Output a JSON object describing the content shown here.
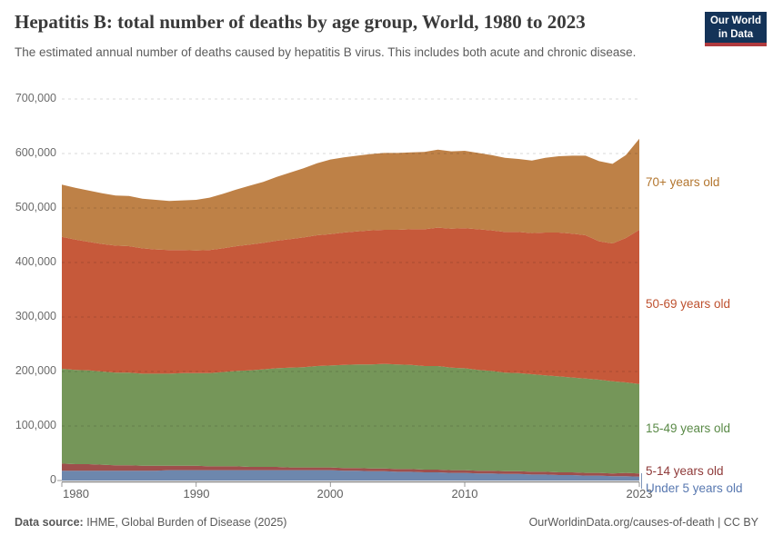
{
  "header": {
    "title": "Hepatitis B: total number of deaths by age group, World, 1980 to 2023",
    "subtitle": "The estimated annual number of deaths caused by hepatitis B virus. This includes both acute and chronic disease.",
    "logo_line1": "Our World",
    "logo_line2": "in Data",
    "logo_bg": "#143358",
    "logo_bar": "#B03A3E"
  },
  "chart_data": {
    "type": "area",
    "stacked": true,
    "title": "Hepatitis B: total number of deaths by age group, World, 1980 to 2023",
    "xlabel": "",
    "ylabel": "",
    "xlim": [
      1980,
      2023
    ],
    "ylim": [
      0,
      700000
    ],
    "grid": true,
    "legend_position": "right",
    "x": [
      1980,
      1981,
      1982,
      1983,
      1984,
      1985,
      1986,
      1987,
      1988,
      1989,
      1990,
      1991,
      1992,
      1993,
      1994,
      1995,
      1996,
      1997,
      1998,
      1999,
      2000,
      2001,
      2002,
      2003,
      2004,
      2005,
      2006,
      2007,
      2008,
      2009,
      2010,
      2011,
      2012,
      2013,
      2014,
      2015,
      2016,
      2017,
      2018,
      2019,
      2020,
      2021,
      2022,
      2023
    ],
    "series": [
      {
        "name": "Under 5 years old",
        "color": "#6D87AD",
        "label_color": "#5878B0",
        "values": [
          18000,
          18000,
          18000,
          18000,
          18000,
          18000,
          18000,
          18000,
          19000,
          19000,
          19000,
          19000,
          19000,
          19000,
          19000,
          19000,
          19000,
          19000,
          19000,
          19000,
          19000,
          18000,
          18000,
          17000,
          17000,
          16000,
          16000,
          15000,
          15000,
          14000,
          14000,
          13000,
          13000,
          12000,
          12000,
          11000,
          11000,
          10000,
          10000,
          9000,
          9000,
          8000,
          8000,
          7000
        ]
      },
      {
        "name": "5-14 years old",
        "color": "#9E4F4C",
        "label_color": "#8F3A39",
        "values": [
          13000,
          12000,
          12000,
          11000,
          10000,
          10000,
          9000,
          9000,
          8000,
          8000,
          8000,
          7000,
          7000,
          7000,
          6000,
          6000,
          6000,
          5000,
          5000,
          5000,
          5000,
          5000,
          5000,
          5000,
          5000,
          5000,
          5000,
          5000,
          5000,
          5000,
          5000,
          5000,
          5000,
          5000,
          5000,
          5000,
          5000,
          5000,
          5000,
          5000,
          5000,
          5000,
          6000,
          6000
        ]
      },
      {
        "name": "15-49 years old",
        "color": "#759659",
        "label_color": "#5A8A47",
        "values": [
          174000,
          173000,
          172000,
          171000,
          170000,
          170000,
          169000,
          169000,
          169000,
          170000,
          170000,
          171000,
          173000,
          175000,
          177000,
          179000,
          181000,
          183000,
          184000,
          186000,
          187000,
          189000,
          190000,
          191000,
          192000,
          192000,
          191000,
          190000,
          190000,
          188000,
          187000,
          185000,
          183000,
          181000,
          180000,
          179000,
          177000,
          176000,
          174000,
          173000,
          171000,
          169000,
          166000,
          164000
        ]
      },
      {
        "name": "50-69 years old",
        "color": "#C6593A",
        "label_color": "#BE512F",
        "values": [
          242000,
          239000,
          236000,
          234000,
          233000,
          232000,
          230000,
          228000,
          227000,
          226000,
          225000,
          226000,
          227000,
          229000,
          231000,
          232000,
          234000,
          236000,
          238000,
          240000,
          241000,
          243000,
          244000,
          246000,
          246000,
          247000,
          249000,
          251000,
          254000,
          255000,
          257000,
          258000,
          258000,
          258000,
          259000,
          259000,
          262000,
          264000,
          264000,
          263000,
          254000,
          253000,
          265000,
          283000
        ]
      },
      {
        "name": "70+ years old",
        "color": "#BE8147",
        "label_color": "#B3762F",
        "values": [
          96000,
          95000,
          94000,
          93000,
          92000,
          92000,
          91000,
          91000,
          90000,
          91000,
          93000,
          96000,
          100000,
          104000,
          108000,
          112000,
          117000,
          122000,
          127000,
          132000,
          137000,
          138000,
          139000,
          140000,
          141000,
          141000,
          141000,
          142000,
          143000,
          142000,
          142000,
          140000,
          138000,
          136000,
          134000,
          133000,
          137000,
          140000,
          143000,
          146000,
          147000,
          146000,
          152000,
          167000
        ]
      }
    ],
    "y_ticks": [
      {
        "value": 0,
        "label": "0"
      },
      {
        "value": 100000,
        "label": "100,000"
      },
      {
        "value": 200000,
        "label": "200,000"
      },
      {
        "value": 300000,
        "label": "300,000"
      },
      {
        "value": 400000,
        "label": "400,000"
      },
      {
        "value": 500000,
        "label": "500,000"
      },
      {
        "value": 600000,
        "label": "600,000"
      },
      {
        "value": 700000,
        "label": "700,000"
      }
    ],
    "x_ticks": [
      {
        "value": 1980,
        "label": "1980"
      },
      {
        "value": 1990,
        "label": "1990"
      },
      {
        "value": 2000,
        "label": "2000"
      },
      {
        "value": 2010,
        "label": "2010"
      },
      {
        "value": 2023,
        "label": "2023"
      }
    ]
  },
  "legend": {
    "items": [
      {
        "label": "70+ years old"
      },
      {
        "label": "50-69 years old"
      },
      {
        "label": "15-49 years old"
      },
      {
        "label": "5-14 years old"
      },
      {
        "label": "Under 5 years old"
      }
    ]
  },
  "footer": {
    "source_label": "Data source:",
    "source_value": " IHME, Global Burden of Disease (2025)",
    "rights": "OurWorldinData.org/causes-of-death | CC BY"
  }
}
